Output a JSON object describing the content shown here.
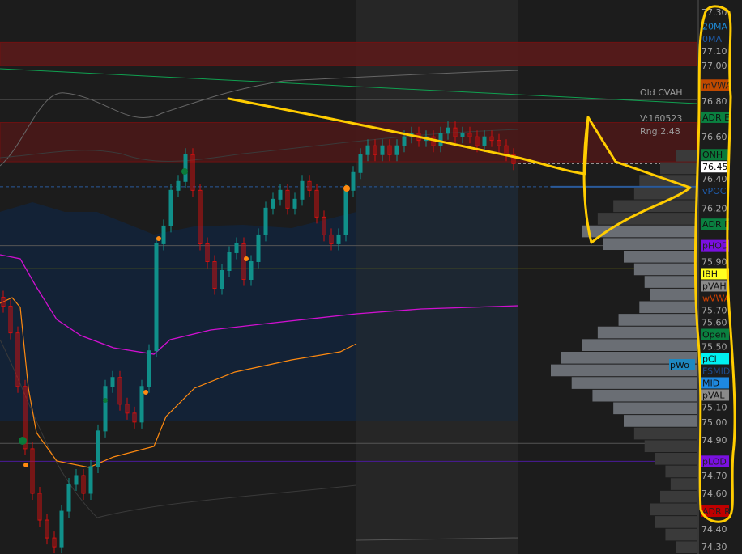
{
  "chart_data": {
    "type": "candlestick",
    "ylim": [
      74.25,
      77.35
    ],
    "y_ticks": [
      "77.30",
      "77.10",
      "77.00",
      "76.80",
      "76.60",
      "76.40",
      "76.20",
      "75.90",
      "75.70",
      "75.60",
      "75.50",
      "75.10",
      "75.00",
      "74.90",
      "74.70",
      "74.60",
      "74.40",
      "74.30"
    ],
    "closes": [
      75.65,
      75.5,
      75.2,
      74.85,
      74.6,
      74.45,
      74.35,
      74.3,
      74.5,
      74.65,
      74.7,
      74.6,
      74.75,
      74.95,
      75.2,
      75.25,
      75.1,
      75.05,
      75.0,
      75.2,
      75.4,
      76.0,
      76.1,
      76.3,
      76.35,
      76.5,
      76.3,
      76.0,
      75.9,
      75.75,
      75.85,
      75.95,
      76.0,
      75.8,
      75.9,
      76.05,
      76.2,
      76.25,
      76.3,
      76.2,
      76.25,
      76.35,
      76.3,
      76.15,
      76.05,
      76.0,
      76.05,
      76.3,
      76.4,
      76.5,
      76.55,
      76.5,
      76.55,
      76.5,
      76.55,
      76.6,
      76.62,
      76.58,
      76.6,
      76.55,
      76.62,
      76.65,
      76.6,
      76.62,
      76.6,
      76.55,
      76.6,
      76.58,
      76.55,
      76.5,
      76.45
    ],
    "last_price": "76.45",
    "zones": [
      {
        "from": 77.0,
        "to": 77.13,
        "color": "#5a1a1a"
      },
      {
        "from": 76.46,
        "to": 76.68,
        "color": "#4a1818"
      }
    ],
    "levels": [
      {
        "price": 76.81,
        "color": "#777777"
      },
      {
        "price": 76.32,
        "color": "#2a5a9a",
        "dashed": true
      },
      {
        "price": 75.99,
        "color": "#555555"
      },
      {
        "price": 75.86,
        "color": "#6a6a10"
      },
      {
        "price": 74.88,
        "color": "#555555"
      },
      {
        "price": 74.78,
        "color": "#4a1a9a"
      }
    ],
    "volume_profile": [
      20,
      35,
      55,
      60,
      80,
      95,
      110,
      90,
      70,
      60,
      50,
      45,
      55,
      75,
      95,
      110,
      130,
      140,
      120,
      100,
      80,
      70,
      60,
      50,
      40,
      30,
      25,
      35,
      45,
      40,
      30,
      20
    ],
    "info": {
      "old_cvah": "Old CVAH",
      "volume": "V:160523",
      "range": "Rng:2.48"
    },
    "tags": [
      {
        "text": "20MA",
        "price": 77.22,
        "bg": "",
        "fg": "#1e8ad6"
      },
      {
        "text": "0MA",
        "price": 77.15,
        "bg": "",
        "fg": "#1e5aa6"
      },
      {
        "text": "mVWA",
        "price": 76.89,
        "bg": "#c04a00",
        "fg": "#222222"
      },
      {
        "text": "ADR E",
        "price": 76.71,
        "bg": "#0a8040",
        "fg": "#111111"
      },
      {
        "text": "ONH",
        "price": 76.5,
        "bg": "#0a7a3a",
        "fg": "#111111"
      },
      {
        "text": "vPOC",
        "price": 76.32,
        "bg": "",
        "fg": "#1e5aa6"
      },
      {
        "text": "ADR F",
        "price": 76.11,
        "bg": "#0a8040",
        "fg": "#111111"
      },
      {
        "text": "pHOD",
        "price": 75.99,
        "bg": "#7a10e0",
        "fg": "#222222"
      },
      {
        "text": "IBH",
        "price": 75.86,
        "bg": "#ffff20",
        "fg": "#111111"
      },
      {
        "text": "pVAH",
        "price": 75.79,
        "bg": "#8a8a8a",
        "fg": "#111111"
      },
      {
        "text": "wVWA",
        "price": 75.72,
        "bg": "",
        "fg": "#d04000"
      },
      {
        "text": "Open",
        "price": 75.57,
        "bg": "#0a8040",
        "fg": "#111111"
      },
      {
        "text": "pCl",
        "price": 75.4,
        "bg": "#00f0f0",
        "fg": "#111111"
      },
      {
        "text": "FSMID",
        "price": 75.36,
        "bg": "",
        "fg": "#1e4a8a"
      },
      {
        "text": "MID",
        "price": 75.3,
        "bg": "#1e88e0",
        "fg": "#111111"
      },
      {
        "text": "pVAL",
        "price": 75.17,
        "bg": "#8a8a8a",
        "fg": "#111111"
      },
      {
        "text": "pLOD",
        "price": 74.78,
        "bg": "#7a10e0",
        "fg": "#222222"
      },
      {
        "text": "ADR R",
        "price": 74.5,
        "bg": "#c00000",
        "fg": "#222222"
      }
    ],
    "pwo_tag": {
      "text": "pWo",
      "bg": "#1e88c0",
      "fg": "#111111"
    },
    "colors": {
      "up": "#10908a",
      "down": "#d01010",
      "vwap": "#d010d0",
      "orange_line": "#ff8a10",
      "green_line": "#10a050",
      "annotation": "#ffcc00"
    }
  }
}
